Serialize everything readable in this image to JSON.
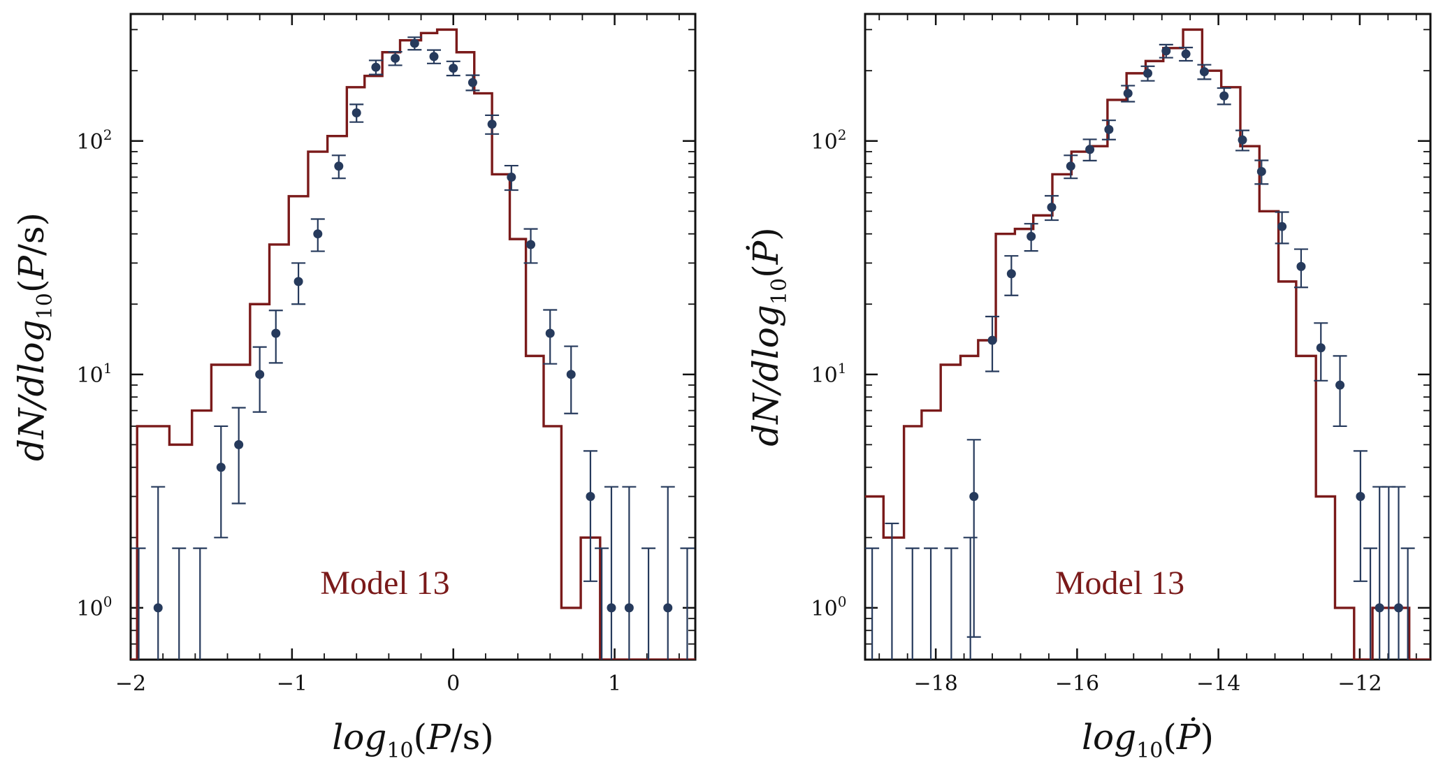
{
  "colors": {
    "model": "#7a1a1a",
    "data": "#263a5c",
    "axis": "#111111"
  },
  "chart_data": [
    {
      "type": "histogram-with-errorbars",
      "name": "period",
      "xlabel": "log10(P/s)",
      "ylabel": "dN/dlog10(P/s)",
      "xlim": [
        -2.0,
        1.5
      ],
      "ylim": [
        0.6,
        350
      ],
      "yscale": "log",
      "annotation": "Model 13",
      "x_ticks": [
        {
          "value": -2,
          "label": "−2"
        },
        {
          "value": -1,
          "label": "−1"
        },
        {
          "value": 0,
          "label": "0"
        },
        {
          "value": 1,
          "label": "1"
        }
      ],
      "y_ticks": [
        {
          "value": 1,
          "base": "10",
          "exp": "0"
        },
        {
          "value": 10,
          "base": "10",
          "exp": "1"
        },
        {
          "value": 100,
          "base": "10",
          "exp": "2"
        }
      ],
      "model_histogram": {
        "name": "Model 13",
        "edges": [
          -2.0,
          -1.96,
          -1.76,
          -1.62,
          -1.5,
          -1.38,
          -1.26,
          -1.14,
          -1.02,
          -0.9,
          -0.78,
          -0.66,
          -0.55,
          -0.44,
          -0.33,
          -0.2,
          -0.1,
          0.02,
          0.13,
          0.24,
          0.35,
          0.45,
          0.56,
          0.67,
          0.79,
          0.91,
          1.03,
          1.2,
          1.5
        ],
        "values": [
          0.3,
          6,
          5,
          7,
          11,
          11,
          20,
          36,
          58,
          90,
          105,
          170,
          190,
          240,
          270,
          290,
          300,
          240,
          160,
          72,
          38,
          12,
          6,
          1,
          2,
          0.3,
          0.3,
          0.3
        ]
      },
      "data_points": [
        {
          "x": -1.83,
          "y": 1,
          "yerr_low": 0.3,
          "yerr_high": 3.3
        },
        {
          "x": -1.44,
          "y": 4,
          "yerr_low": 2.0,
          "yerr_high": 6.0
        },
        {
          "x": -1.33,
          "y": 5,
          "yerr_low": 2.8,
          "yerr_high": 7.2
        },
        {
          "x": -1.2,
          "y": 10,
          "yerr_low": 6.9,
          "yerr_high": 13.1
        },
        {
          "x": -1.1,
          "y": 15,
          "yerr_low": 11.2,
          "yerr_high": 18.8
        },
        {
          "x": -0.96,
          "y": 25,
          "yerr_low": 20.0,
          "yerr_high": 30.0
        },
        {
          "x": -0.84,
          "y": 40,
          "yerr_low": 33.7,
          "yerr_high": 46.3
        },
        {
          "x": -0.71,
          "y": 78,
          "yerr_low": 69.2,
          "yerr_high": 86.8
        },
        {
          "x": -0.6,
          "y": 132,
          "yerr_low": 120.5,
          "yerr_high": 143.5
        },
        {
          "x": -0.48,
          "y": 207,
          "yerr_low": 192.6,
          "yerr_high": 221.4
        },
        {
          "x": -0.36,
          "y": 226,
          "yerr_low": 211.0,
          "yerr_high": 241.0
        },
        {
          "x": -0.24,
          "y": 262,
          "yerr_low": 245.8,
          "yerr_high": 278.2
        },
        {
          "x": -0.12,
          "y": 230,
          "yerr_low": 214.8,
          "yerr_high": 245.2
        },
        {
          "x": 0.0,
          "y": 205,
          "yerr_low": 190.7,
          "yerr_high": 219.3
        },
        {
          "x": 0.12,
          "y": 178,
          "yerr_low": 164.7,
          "yerr_high": 191.3
        },
        {
          "x": 0.24,
          "y": 118,
          "yerr_low": 107.1,
          "yerr_high": 128.9
        },
        {
          "x": 0.36,
          "y": 70,
          "yerr_low": 61.6,
          "yerr_high": 78.4
        },
        {
          "x": 0.48,
          "y": 36,
          "yerr_low": 30.0,
          "yerr_high": 42.0
        },
        {
          "x": 0.6,
          "y": 15,
          "yerr_low": 11.1,
          "yerr_high": 18.9
        },
        {
          "x": 0.73,
          "y": 10,
          "yerr_low": 6.8,
          "yerr_high": 13.2
        },
        {
          "x": 0.85,
          "y": 3,
          "yerr_low": 1.3,
          "yerr_high": 4.7
        },
        {
          "x": 0.98,
          "y": 1,
          "yerr_low": 0.3,
          "yerr_high": 3.3
        },
        {
          "x": 1.09,
          "y": 1,
          "yerr_low": 0.3,
          "yerr_high": 3.3
        },
        {
          "x": 1.33,
          "y": 1,
          "yerr_low": 0.3,
          "yerr_high": 3.3
        }
      ],
      "upper_limit_bars": [
        {
          "x": -1.95,
          "low": 0.3,
          "high": 1.8
        },
        {
          "x": -1.7,
          "low": 0.3,
          "high": 1.8
        },
        {
          "x": -1.57,
          "low": 0.3,
          "high": 1.8
        },
        {
          "x": 0.92,
          "low": 0.3,
          "high": 1.8
        },
        {
          "x": 1.21,
          "low": 0.3,
          "high": 1.8
        },
        {
          "x": 1.45,
          "low": 0.3,
          "high": 1.8
        }
      ]
    },
    {
      "type": "histogram-with-errorbars",
      "name": "period-derivative",
      "xlabel": "log10(Ṗ)",
      "ylabel": "dN/dlog10(Ṗ)",
      "xlim": [
        -19.0,
        -11.0
      ],
      "ylim": [
        0.6,
        350
      ],
      "yscale": "log",
      "annotation": "Model 13",
      "x_ticks": [
        {
          "value": -18,
          "label": "−18"
        },
        {
          "value": -16,
          "label": "−16"
        },
        {
          "value": -14,
          "label": "−14"
        },
        {
          "value": -12,
          "label": "−12"
        }
      ],
      "y_ticks": [
        {
          "value": 1,
          "base": "10",
          "exp": "0"
        },
        {
          "value": 10,
          "base": "10",
          "exp": "1"
        },
        {
          "value": 100,
          "base": "10",
          "exp": "2"
        }
      ],
      "model_histogram": {
        "name": "Model 13",
        "edges": [
          -19.0,
          -18.74,
          -18.45,
          -18.2,
          -17.93,
          -17.65,
          -17.4,
          -17.15,
          -16.88,
          -16.62,
          -16.35,
          -16.08,
          -15.83,
          -15.57,
          -15.3,
          -15.03,
          -14.78,
          -14.5,
          -14.23,
          -13.96,
          -13.69,
          -13.42,
          -13.15,
          -12.9,
          -12.62,
          -12.35,
          -12.08,
          -11.82,
          -11.3,
          -11.0
        ],
        "values": [
          3,
          2,
          6,
          7,
          11,
          12,
          14,
          40,
          42,
          48,
          72,
          90,
          95,
          150,
          195,
          220,
          250,
          300,
          200,
          170,
          95,
          50,
          25,
          12,
          3,
          1,
          0.3,
          1,
          0.3
        ]
      },
      "data_points": [
        {
          "x": -17.46,
          "y": 3,
          "yerr_low": 0.75,
          "yerr_high": 5.25
        },
        {
          "x": -17.2,
          "y": 14,
          "yerr_low": 10.3,
          "yerr_high": 17.7
        },
        {
          "x": -16.93,
          "y": 27,
          "yerr_low": 21.8,
          "yerr_high": 32.2
        },
        {
          "x": -16.65,
          "y": 39,
          "yerr_low": 33.8,
          "yerr_high": 44.2
        },
        {
          "x": -16.36,
          "y": 52,
          "yerr_low": 45.8,
          "yerr_high": 58.2
        },
        {
          "x": -16.09,
          "y": 78,
          "yerr_low": 69.2,
          "yerr_high": 86.8
        },
        {
          "x": -15.82,
          "y": 92,
          "yerr_low": 82.4,
          "yerr_high": 101.6
        },
        {
          "x": -15.55,
          "y": 112,
          "yerr_low": 101.4,
          "yerr_high": 122.6
        },
        {
          "x": -15.28,
          "y": 160,
          "yerr_low": 147.4,
          "yerr_high": 172.6
        },
        {
          "x": -15.0,
          "y": 195,
          "yerr_low": 181.0,
          "yerr_high": 209.0
        },
        {
          "x": -14.74,
          "y": 243,
          "yerr_low": 227.4,
          "yerr_high": 258.6
        },
        {
          "x": -14.46,
          "y": 236,
          "yerr_low": 220.6,
          "yerr_high": 251.4
        },
        {
          "x": -14.2,
          "y": 198,
          "yerr_low": 183.9,
          "yerr_high": 212.1
        },
        {
          "x": -13.92,
          "y": 156,
          "yerr_low": 143.5,
          "yerr_high": 168.5
        },
        {
          "x": -13.66,
          "y": 101,
          "yerr_low": 91.0,
          "yerr_high": 111.0
        },
        {
          "x": -13.39,
          "y": 74,
          "yerr_low": 65.4,
          "yerr_high": 82.6
        },
        {
          "x": -13.1,
          "y": 43,
          "yerr_low": 36.4,
          "yerr_high": 49.6
        },
        {
          "x": -12.83,
          "y": 29,
          "yerr_low": 23.6,
          "yerr_high": 34.4
        },
        {
          "x": -12.55,
          "y": 13,
          "yerr_low": 9.4,
          "yerr_high": 16.6
        },
        {
          "x": -12.28,
          "y": 9,
          "yerr_low": 6.0,
          "yerr_high": 12.0
        },
        {
          "x": -11.99,
          "y": 3,
          "yerr_low": 1.3,
          "yerr_high": 4.7
        },
        {
          "x": -11.72,
          "y": 1,
          "yerr_low": 0.3,
          "yerr_high": 3.3
        },
        {
          "x": -11.45,
          "y": 1,
          "yerr_low": 0.3,
          "yerr_high": 3.3
        }
      ],
      "upper_limit_bars": [
        {
          "x": -18.9,
          "low": 0.3,
          "high": 1.8
        },
        {
          "x": -18.62,
          "low": 0.3,
          "high": 2.3
        },
        {
          "x": -18.33,
          "low": 0.3,
          "high": 1.8
        },
        {
          "x": -18.07,
          "low": 0.3,
          "high": 1.8
        },
        {
          "x": -17.78,
          "low": 0.3,
          "high": 1.8
        },
        {
          "x": -17.51,
          "low": 0.3,
          "high": 2.0
        },
        {
          "x": -11.85,
          "low": 0.3,
          "high": 1.8
        },
        {
          "x": -11.59,
          "low": 0.3,
          "high": 3.3
        },
        {
          "x": -11.32,
          "low": 0.3,
          "high": 1.8
        }
      ]
    }
  ]
}
